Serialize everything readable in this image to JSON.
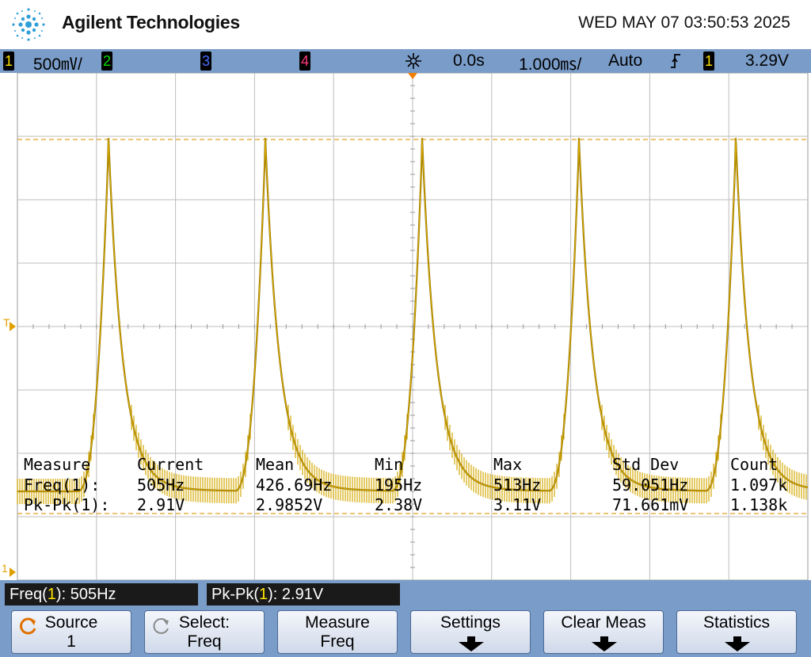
{
  "header": {
    "brand": "Agilent Technologies",
    "datetime": "WED MAY 07 03:50:53 2025",
    "logo_icon": "agilent-spark-logo-icon"
  },
  "status_bar": {
    "ch1": {
      "num": "1",
      "scale": "500㎷/",
      "color": "#ffe400"
    },
    "ch2": {
      "num": "2",
      "color": "#00e000"
    },
    "ch3": {
      "num": "3",
      "color": "#4a6cff"
    },
    "ch4": {
      "num": "4",
      "color": "#ff3b7a"
    },
    "run_icon": "acquisition-spark-icon",
    "time_delay": "0.0s",
    "time_scale": "1.000㎳/",
    "trigger_mode": "Auto",
    "trigger_slope_icon": "rising-edge-icon",
    "trigger_source": "1",
    "trigger_level": "3.29V"
  },
  "waveform": {
    "color": "#d4a800",
    "grid_color": "#bdbdbd",
    "frequency_hz": 505,
    "peak_v": 3.29,
    "cursor_color": "#e0a020",
    "trigger_marker": "T",
    "ground_marker": "1"
  },
  "measurements": {
    "headers": [
      "Measure",
      "Current",
      "Mean",
      "Min",
      "Max",
      "Std Dev",
      "Count"
    ],
    "rows": [
      [
        "Freq(1):",
        "505Hz",
        "426.69Hz",
        "195Hz",
        "513Hz",
        "59.051Hz",
        "1.097k"
      ],
      [
        "Pk-Pk(1):",
        "2.91V",
        "2.9852V",
        "2.38V",
        "3.11V",
        "71.661mV",
        "1.138k"
      ]
    ]
  },
  "readouts": [
    {
      "name": "Freq(",
      "ch": "1",
      "value": "): 505Hz"
    },
    {
      "name": "Pk-Pk(",
      "ch": "1",
      "value": "): 2.91V"
    }
  ],
  "softkeys": {
    "source": {
      "line1": "Source",
      "line2": "1",
      "icon": "rotate-knob-icon"
    },
    "select": {
      "line1": "Select:",
      "line2": "Freq",
      "icon": "rotate-knob-icon"
    },
    "measure": {
      "line1": "Measure",
      "line2": "Freq"
    },
    "settings": {
      "line1": "Settings",
      "icon": "submenu-down-arrow-icon"
    },
    "clear": {
      "line1": "Clear Meas",
      "icon": "submenu-down-arrow-icon"
    },
    "statistics": {
      "line1": "Statistics",
      "icon": "submenu-down-arrow-icon"
    }
  }
}
